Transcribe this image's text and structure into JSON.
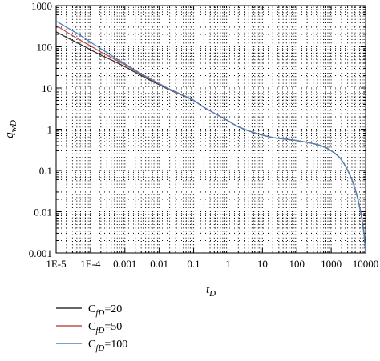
{
  "chart_data": {
    "type": "line",
    "x_scale": "log",
    "y_scale": "log",
    "xlim": [
      1e-05,
      10000
    ],
    "ylim": [
      0.001,
      1000
    ],
    "xlabel": {
      "main": "t",
      "sub": "D"
    },
    "ylabel": {
      "main": "q",
      "sub": "wD"
    },
    "x_ticks": [
      {
        "value": 1e-05,
        "label": "1E-5"
      },
      {
        "value": 0.0001,
        "label": "1E-4"
      },
      {
        "value": 0.001,
        "label": "0.001"
      },
      {
        "value": 0.01,
        "label": "0.01"
      },
      {
        "value": 0.1,
        "label": "0.1"
      },
      {
        "value": 1,
        "label": "1"
      },
      {
        "value": 10,
        "label": "10"
      },
      {
        "value": 100,
        "label": "100"
      },
      {
        "value": 1000,
        "label": "1000"
      },
      {
        "value": 10000,
        "label": "10000"
      }
    ],
    "y_ticks": [
      {
        "value": 0.001,
        "label": "0.001"
      },
      {
        "value": 0.01,
        "label": "0.01"
      },
      {
        "value": 0.1,
        "label": "0.1"
      },
      {
        "value": 1,
        "label": "1"
      },
      {
        "value": 10,
        "label": "10"
      },
      {
        "value": 100,
        "label": "100"
      },
      {
        "value": 1000,
        "label": "1000"
      }
    ],
    "grid": "dotted",
    "legend_position": "bottom-left",
    "series": [
      {
        "name": "C_fD=20",
        "name_parts": {
          "main": "C",
          "sub": "fD",
          "suffix": "=20"
        },
        "color": "#333333",
        "x": [
          1e-05,
          2e-05,
          5e-05,
          0.0001,
          0.0002,
          0.0005,
          0.001,
          0.002,
          0.005,
          0.01,
          0.02,
          0.05,
          0.1,
          0.2,
          0.5,
          1,
          2,
          5,
          10,
          20,
          50,
          100,
          200,
          500,
          1000,
          2000,
          4000,
          6000,
          8000,
          9000,
          10000
        ],
        "y": [
          230,
          170,
          115,
          85,
          63,
          44,
          33,
          24,
          16,
          12,
          9,
          6.5,
          5,
          3.4,
          2.2,
          1.6,
          1.15,
          0.85,
          0.72,
          0.63,
          0.57,
          0.53,
          0.48,
          0.4,
          0.3,
          0.18,
          0.06,
          0.02,
          0.006,
          0.003,
          0.001
        ]
      },
      {
        "name": "C_fD=50",
        "name_parts": {
          "main": "C",
          "sub": "fD",
          "suffix": "=50"
        },
        "color": "#c0504d",
        "x": [
          1e-05,
          2e-05,
          5e-05,
          0.0001,
          0.0002,
          0.0005,
          0.001,
          0.002,
          0.005,
          0.01,
          0.02,
          0.05,
          0.1,
          0.2,
          0.5,
          1,
          2,
          5,
          10,
          20,
          50,
          100,
          200,
          500,
          1000,
          2000,
          4000,
          6000,
          8000,
          9000,
          10000
        ],
        "y": [
          330,
          230,
          145,
          105,
          75,
          50,
          37,
          26,
          17,
          12.5,
          9.2,
          6.6,
          5,
          3.4,
          2.2,
          1.6,
          1.15,
          0.85,
          0.72,
          0.63,
          0.57,
          0.53,
          0.48,
          0.4,
          0.3,
          0.18,
          0.06,
          0.02,
          0.006,
          0.003,
          0.001
        ]
      },
      {
        "name": "C_fD=100",
        "name_parts": {
          "main": "C",
          "sub": "fD",
          "suffix": "=100"
        },
        "color": "#4f81bd",
        "x": [
          1e-05,
          2e-05,
          5e-05,
          0.0001,
          0.0002,
          0.0005,
          0.001,
          0.002,
          0.005,
          0.01,
          0.02,
          0.05,
          0.1,
          0.2,
          0.5,
          1,
          2,
          5,
          10,
          20,
          50,
          100,
          200,
          500,
          1000,
          2000,
          4000,
          6000,
          8000,
          9000,
          10000
        ],
        "y": [
          420,
          300,
          190,
          130,
          90,
          55,
          39,
          27,
          17.5,
          12.8,
          9.4,
          6.7,
          5,
          3.4,
          2.2,
          1.6,
          1.15,
          0.85,
          0.72,
          0.63,
          0.57,
          0.53,
          0.48,
          0.4,
          0.3,
          0.18,
          0.06,
          0.02,
          0.006,
          0.003,
          0.001
        ]
      }
    ]
  }
}
